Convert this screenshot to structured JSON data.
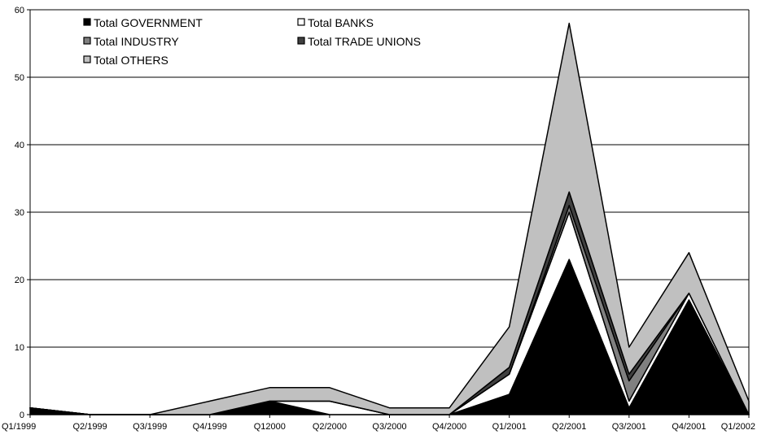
{
  "chart_data": {
    "type": "area",
    "stacked": true,
    "categories": [
      "Q1/1999",
      "Q2/1999",
      "Q3/1999",
      "Q4/1999",
      "Q12000",
      "Q2/2000",
      "Q3/2000",
      "Q4/2000",
      "Q1/2001",
      "Q2/2001",
      "Q3/2001",
      "Q4/2001",
      "Q1/2002"
    ],
    "series": [
      {
        "name": "Total GOVERNMENT",
        "color": "#000000",
        "values": [
          1,
          0,
          0,
          0,
          2,
          0,
          0,
          0,
          3,
          23,
          1,
          17,
          0
        ]
      },
      {
        "name": "Total BANKS",
        "color": "#ffffff",
        "values": [
          0,
          0,
          0,
          0,
          0,
          2,
          0,
          0,
          3,
          7,
          1,
          1,
          0
        ]
      },
      {
        "name": "Total INDUSTRY",
        "color": "#808080",
        "values": [
          0,
          0,
          0,
          0,
          0,
          0,
          0,
          0,
          0,
          1,
          3,
          0,
          0
        ]
      },
      {
        "name": "Total TRADE UNIONS",
        "color": "#404040",
        "values": [
          0,
          0,
          0,
          0,
          0,
          0,
          0,
          0,
          1,
          2,
          1,
          0,
          0
        ]
      },
      {
        "name": "Total OTHERS",
        "color": "#c0c0c0",
        "values": [
          0,
          0,
          0,
          2,
          2,
          2,
          1,
          1,
          6,
          25,
          4,
          6,
          2
        ]
      }
    ],
    "y_ticks": [
      0,
      10,
      20,
      30,
      40,
      50,
      60
    ],
    "ylim": [
      0,
      60
    ],
    "grid": true,
    "legend_position": "top-left",
    "title": "",
    "xlabel": "",
    "ylabel": ""
  }
}
